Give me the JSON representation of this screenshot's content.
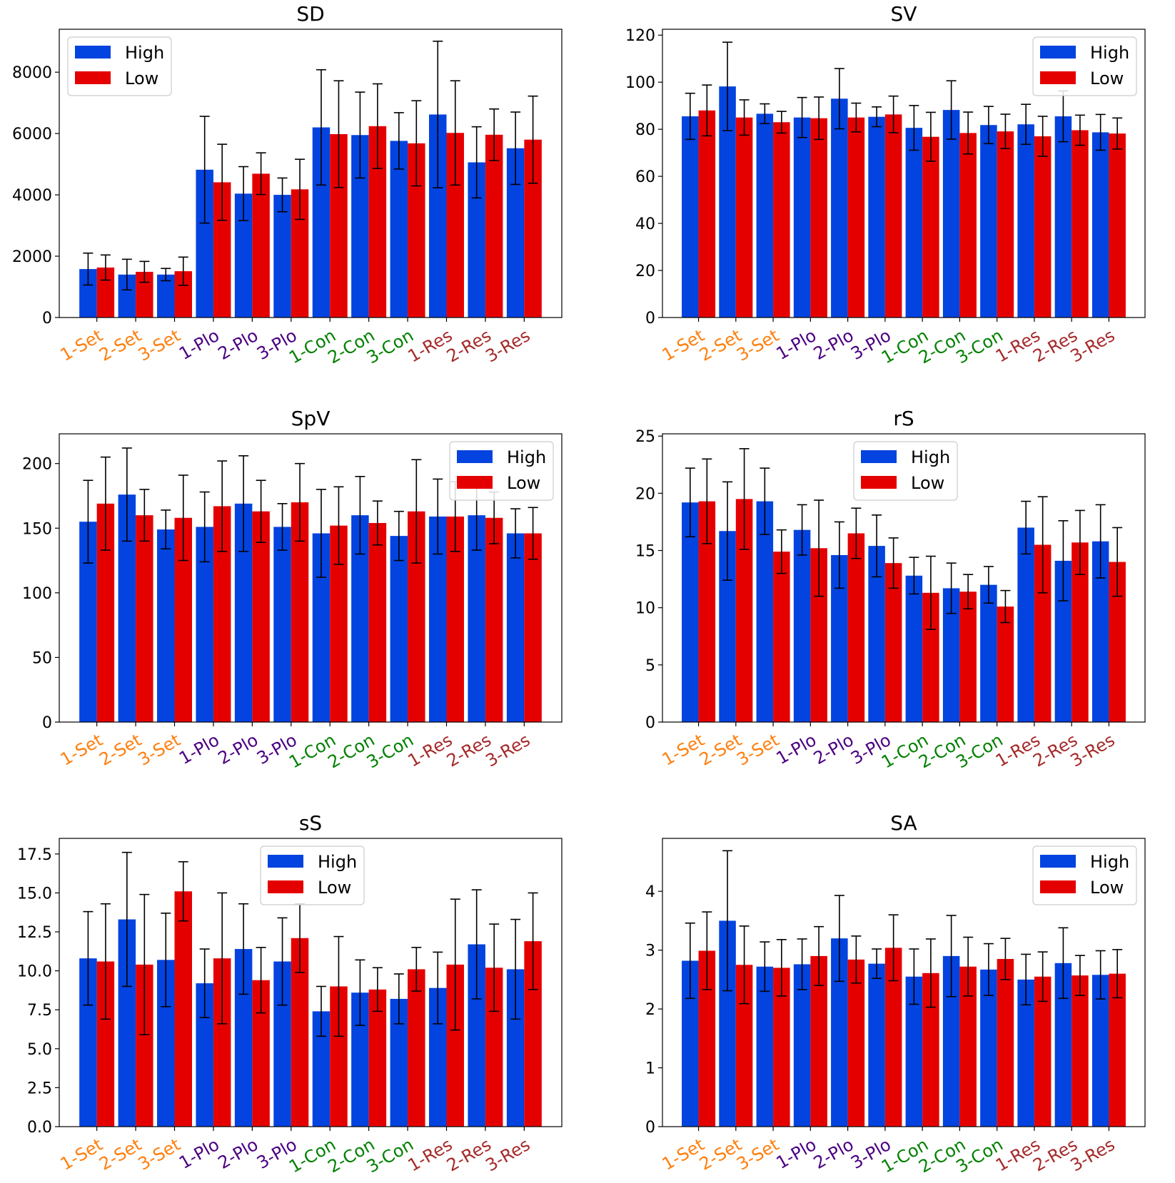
{
  "chart_data": [
    {
      "type": "bar",
      "title": "SD",
      "categories": [
        "1-Set",
        "2-Set",
        "3-Set",
        "1-Plo",
        "2-Plo",
        "3-Plo",
        "1-Con",
        "2-Con",
        "3-Con",
        "1-Res",
        "2-Res",
        "3-Res"
      ],
      "category_colors": [
        "#ff7f0e",
        "#ff7f0e",
        "#ff7f0e",
        "#4b0082",
        "#4b0082",
        "#4b0082",
        "#008000",
        "#008000",
        "#008000",
        "#a52a2a",
        "#a52a2a",
        "#a52a2a"
      ],
      "series": [
        {
          "name": "High",
          "color": "#0343df",
          "values": [
            1580,
            1400,
            1400,
            4820,
            4040,
            4000,
            6200,
            5950,
            5760,
            6620,
            5060,
            5520
          ],
          "errors": [
            520,
            500,
            200,
            1740,
            880,
            550,
            1880,
            1400,
            920,
            2390,
            1160,
            1180
          ]
        },
        {
          "name": "Low",
          "color": "#e50000",
          "values": [
            1630,
            1490,
            1510,
            4410,
            4690,
            4180,
            5980,
            6240,
            5680,
            6020,
            5960,
            5800
          ],
          "errors": [
            410,
            340,
            460,
            1240,
            680,
            980,
            1740,
            1380,
            1390,
            1700,
            840,
            1420
          ]
        }
      ],
      "yticks": [
        0,
        2000,
        4000,
        6000,
        8000
      ],
      "ylim": [
        0,
        9400
      ],
      "legend": "top-left"
    },
    {
      "type": "bar",
      "title": "SV",
      "categories": [
        "1-Set",
        "2-Set",
        "3-Set",
        "1-Plo",
        "2-Plo",
        "3-Plo",
        "1-Con",
        "2-Con",
        "3-Con",
        "1-Res",
        "2-Res",
        "3-Res"
      ],
      "category_colors": [
        "#ff7f0e",
        "#ff7f0e",
        "#ff7f0e",
        "#4b0082",
        "#4b0082",
        "#4b0082",
        "#008000",
        "#008000",
        "#008000",
        "#a52a2a",
        "#a52a2a",
        "#a52a2a"
      ],
      "series": [
        {
          "name": "High",
          "color": "#0343df",
          "values": [
            85.5,
            98.2,
            86.6,
            85.0,
            93.0,
            85.3,
            80.6,
            88.2,
            81.8,
            82.1,
            85.5,
            78.7
          ],
          "errors": [
            9.8,
            18.8,
            4.2,
            8.5,
            12.8,
            4.2,
            9.5,
            12.4,
            7.9,
            8.5,
            10.8,
            7.6
          ]
        },
        {
          "name": "Low",
          "color": "#e50000",
          "values": [
            88.0,
            85.0,
            83.0,
            84.7,
            85.0,
            86.3,
            76.8,
            78.4,
            79.1,
            77.0,
            79.6,
            78.2
          ],
          "errors": [
            10.8,
            7.5,
            4.6,
            9.0,
            6.1,
            7.8,
            10.4,
            8.9,
            7.3,
            8.5,
            6.4,
            6.6
          ]
        }
      ],
      "yticks": [
        0,
        20,
        40,
        60,
        80,
        100,
        120
      ],
      "ylim": [
        0,
        122.5
      ],
      "legend": "top-right"
    },
    {
      "type": "bar",
      "title": "SpV",
      "categories": [
        "1-Set",
        "2-Set",
        "3-Set",
        "1-Plo",
        "2-Plo",
        "3-Plo",
        "1-Con",
        "2-Con",
        "3-Con",
        "1-Res",
        "2-Res",
        "3-Res"
      ],
      "category_colors": [
        "#ff7f0e",
        "#ff7f0e",
        "#ff7f0e",
        "#4b0082",
        "#4b0082",
        "#4b0082",
        "#008000",
        "#008000",
        "#008000",
        "#a52a2a",
        "#a52a2a",
        "#a52a2a"
      ],
      "series": [
        {
          "name": "High",
          "color": "#0343df",
          "values": [
            155,
            176,
            149,
            151,
            169,
            151,
            146,
            160,
            144,
            159,
            160,
            146
          ],
          "errors": [
            32,
            36,
            15,
            27,
            37,
            18,
            34,
            30,
            19,
            29,
            27,
            19
          ]
        },
        {
          "name": "Low",
          "color": "#e50000",
          "values": [
            169,
            160,
            158,
            167,
            163,
            170,
            152,
            154,
            163,
            159,
            158,
            146
          ],
          "errors": [
            36,
            20,
            33,
            35,
            24,
            30,
            30,
            17,
            40,
            27,
            20,
            20
          ]
        }
      ],
      "yticks": [
        0,
        50,
        100,
        150,
        200
      ],
      "ylim": [
        0,
        223
      ],
      "legend": "top-right"
    },
    {
      "type": "bar",
      "title": "rS",
      "categories": [
        "1-Set",
        "2-Set",
        "3-Set",
        "1-Plo",
        "2-Plo",
        "3-Plo",
        "1-Con",
        "2-Con",
        "3-Con",
        "1-Res",
        "2-Res",
        "3-Res"
      ],
      "category_colors": [
        "#ff7f0e",
        "#ff7f0e",
        "#ff7f0e",
        "#4b0082",
        "#4b0082",
        "#4b0082",
        "#008000",
        "#008000",
        "#008000",
        "#a52a2a",
        "#a52a2a",
        "#a52a2a"
      ],
      "series": [
        {
          "name": "High",
          "color": "#0343df",
          "values": [
            19.2,
            16.7,
            19.3,
            16.8,
            14.6,
            15.4,
            12.8,
            11.7,
            12.0,
            17.0,
            14.1,
            15.8
          ],
          "errors": [
            3.0,
            4.3,
            2.9,
            2.2,
            2.9,
            2.7,
            1.6,
            2.2,
            1.6,
            2.3,
            3.5,
            3.2
          ]
        },
        {
          "name": "Low",
          "color": "#e50000",
          "values": [
            19.3,
            19.5,
            14.9,
            15.2,
            16.5,
            13.9,
            11.3,
            11.4,
            10.1,
            15.5,
            15.7,
            14.0
          ],
          "errors": [
            3.7,
            4.4,
            1.9,
            4.2,
            2.2,
            2.2,
            3.2,
            1.5,
            1.4,
            4.2,
            2.8,
            3.0
          ]
        }
      ],
      "yticks": [
        0,
        5,
        10,
        15,
        20,
        25
      ],
      "ylim": [
        0,
        25.2
      ],
      "legend": "top-center"
    },
    {
      "type": "bar",
      "title": "sS",
      "categories": [
        "1-Set",
        "2-Set",
        "3-Set",
        "1-Plo",
        "2-Plo",
        "3-Plo",
        "1-Con",
        "2-Con",
        "3-Con",
        "1-Res",
        "2-Res",
        "3-Res"
      ],
      "category_colors": [
        "#ff7f0e",
        "#ff7f0e",
        "#ff7f0e",
        "#4b0082",
        "#4b0082",
        "#4b0082",
        "#008000",
        "#008000",
        "#008000",
        "#a52a2a",
        "#a52a2a",
        "#a52a2a"
      ],
      "series": [
        {
          "name": "High",
          "color": "#0343df",
          "values": [
            10.8,
            13.3,
            10.7,
            9.2,
            11.4,
            10.6,
            7.4,
            8.6,
            8.2,
            8.9,
            11.7,
            10.1
          ],
          "errors": [
            3.0,
            4.3,
            3.0,
            2.2,
            2.9,
            2.8,
            1.6,
            2.1,
            1.6,
            2.3,
            3.5,
            3.2
          ]
        },
        {
          "name": "Low",
          "color": "#e50000",
          "values": [
            10.6,
            10.4,
            15.1,
            10.8,
            9.4,
            12.1,
            9.0,
            8.8,
            10.1,
            10.4,
            10.2,
            11.9
          ],
          "errors": [
            3.7,
            4.5,
            1.9,
            4.2,
            2.1,
            2.2,
            3.2,
            1.4,
            1.4,
            4.2,
            2.8,
            3.1
          ]
        }
      ],
      "yticks": [
        0.0,
        2.5,
        5.0,
        7.5,
        10.0,
        12.5,
        15.0,
        17.5
      ],
      "ylim": [
        0,
        18.5
      ],
      "legend": "top-center"
    },
    {
      "type": "bar",
      "title": "SA",
      "categories": [
        "1-Set",
        "2-Set",
        "3-Set",
        "1-Plo",
        "2-Plo",
        "3-Plo",
        "1-Con",
        "2-Con",
        "3-Con",
        "1-Res",
        "2-Res",
        "3-Res"
      ],
      "category_colors": [
        "#ff7f0e",
        "#ff7f0e",
        "#ff7f0e",
        "#4b0082",
        "#4b0082",
        "#4b0082",
        "#008000",
        "#008000",
        "#008000",
        "#a52a2a",
        "#a52a2a",
        "#a52a2a"
      ],
      "series": [
        {
          "name": "High",
          "color": "#0343df",
          "values": [
            2.82,
            3.5,
            2.72,
            2.76,
            3.2,
            2.77,
            2.55,
            2.9,
            2.67,
            2.5,
            2.78,
            2.58
          ],
          "errors": [
            0.64,
            1.19,
            0.42,
            0.43,
            0.73,
            0.25,
            0.47,
            0.69,
            0.44,
            0.43,
            0.6,
            0.41
          ]
        },
        {
          "name": "Low",
          "color": "#e50000",
          "values": [
            2.99,
            2.75,
            2.7,
            2.9,
            2.84,
            3.04,
            2.61,
            2.72,
            2.85,
            2.55,
            2.57,
            2.6
          ],
          "errors": [
            0.66,
            0.66,
            0.48,
            0.5,
            0.4,
            0.56,
            0.58,
            0.5,
            0.35,
            0.42,
            0.34,
            0.41
          ]
        }
      ],
      "yticks": [
        0,
        1,
        2,
        3,
        4
      ],
      "ylim": [
        0,
        4.9
      ],
      "legend": "top-right"
    }
  ]
}
